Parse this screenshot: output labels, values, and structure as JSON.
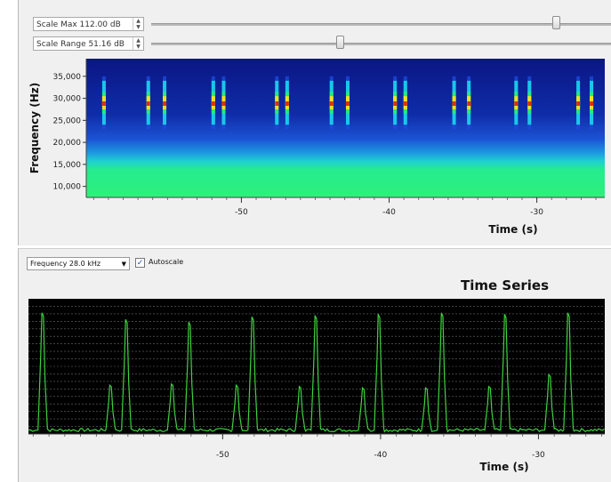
{
  "controls": {
    "scale_max_label": "Scale Max 112.00 dB",
    "scale_max_level": 0.88,
    "scale_range_label": "Scale Range 51.16 dB",
    "scale_range_level": 0.41,
    "frequency_select": "Frequency 28.0 kHz",
    "autoscale_label": "Autoscale",
    "autoscale_checked": true
  },
  "chart_data": [
    {
      "type": "heatmap",
      "title": "",
      "xlabel": "Time (s)",
      "ylabel": "Frequency (Hz)",
      "xlim": [
        -60.5,
        -25.4
      ],
      "ylim": [
        7500,
        39000
      ],
      "x_ticks": [
        -50,
        -40,
        -30
      ],
      "y_ticks": [
        10000,
        15000,
        20000,
        25000,
        30000,
        35000
      ],
      "tick_labels": {
        "x": [
          "-50",
          "-40",
          "-30"
        ],
        "y": [
          "10,000",
          "15,000",
          "20,000",
          "25,000",
          "30,000",
          "35,000"
        ]
      },
      "colormap": [
        "#0b1a8c",
        "#1e48d9",
        "#19c8e8",
        "#27e887",
        "#f0e020",
        "#e03010"
      ],
      "background_level": "low (dark blue) above 20,000 Hz, high (green) below 16,000 Hz",
      "click_band_hz": [
        23000,
        35000
      ],
      "click_times": [
        -59.3,
        -56.3,
        -55.2,
        -51.9,
        -51.2,
        -47.6,
        -46.9,
        -43.9,
        -42.8,
        -39.6,
        -38.9,
        -35.6,
        -34.6,
        -31.4,
        -30.5,
        -27.2,
        -26.3
      ]
    },
    {
      "type": "line",
      "title": "Time Series",
      "xlabel": "Time (s)",
      "ylabel": "",
      "xlim": [
        -62.3,
        -25.8
      ],
      "ylim": [
        0,
        1
      ],
      "grid": true,
      "x_ticks": [
        -50,
        -40,
        -30
      ],
      "tick_labels": {
        "x": [
          "-50",
          "-40",
          "-30"
        ]
      },
      "series": [
        {
          "color": "#3ed13e",
          "peaks": [
            {
              "t": -61.4,
              "h": 0.92
            },
            {
              "t": -57.1,
              "h": 0.37
            },
            {
              "t": -56.1,
              "h": 0.87
            },
            {
              "t": -53.2,
              "h": 0.38
            },
            {
              "t": -52.1,
              "h": 0.85
            },
            {
              "t": -49.1,
              "h": 0.37
            },
            {
              "t": -48.1,
              "h": 0.89
            },
            {
              "t": -45.1,
              "h": 0.36
            },
            {
              "t": -44.1,
              "h": 0.9
            },
            {
              "t": -41.1,
              "h": 0.35
            },
            {
              "t": -40.1,
              "h": 0.91
            },
            {
              "t": -37.1,
              "h": 0.35
            },
            {
              "t": -36.1,
              "h": 0.92
            },
            {
              "t": -33.1,
              "h": 0.36
            },
            {
              "t": -32.1,
              "h": 0.91
            },
            {
              "t": -29.3,
              "h": 0.45
            },
            {
              "t": -28.1,
              "h": 0.92
            }
          ],
          "baseline": 0.03
        }
      ]
    }
  ]
}
